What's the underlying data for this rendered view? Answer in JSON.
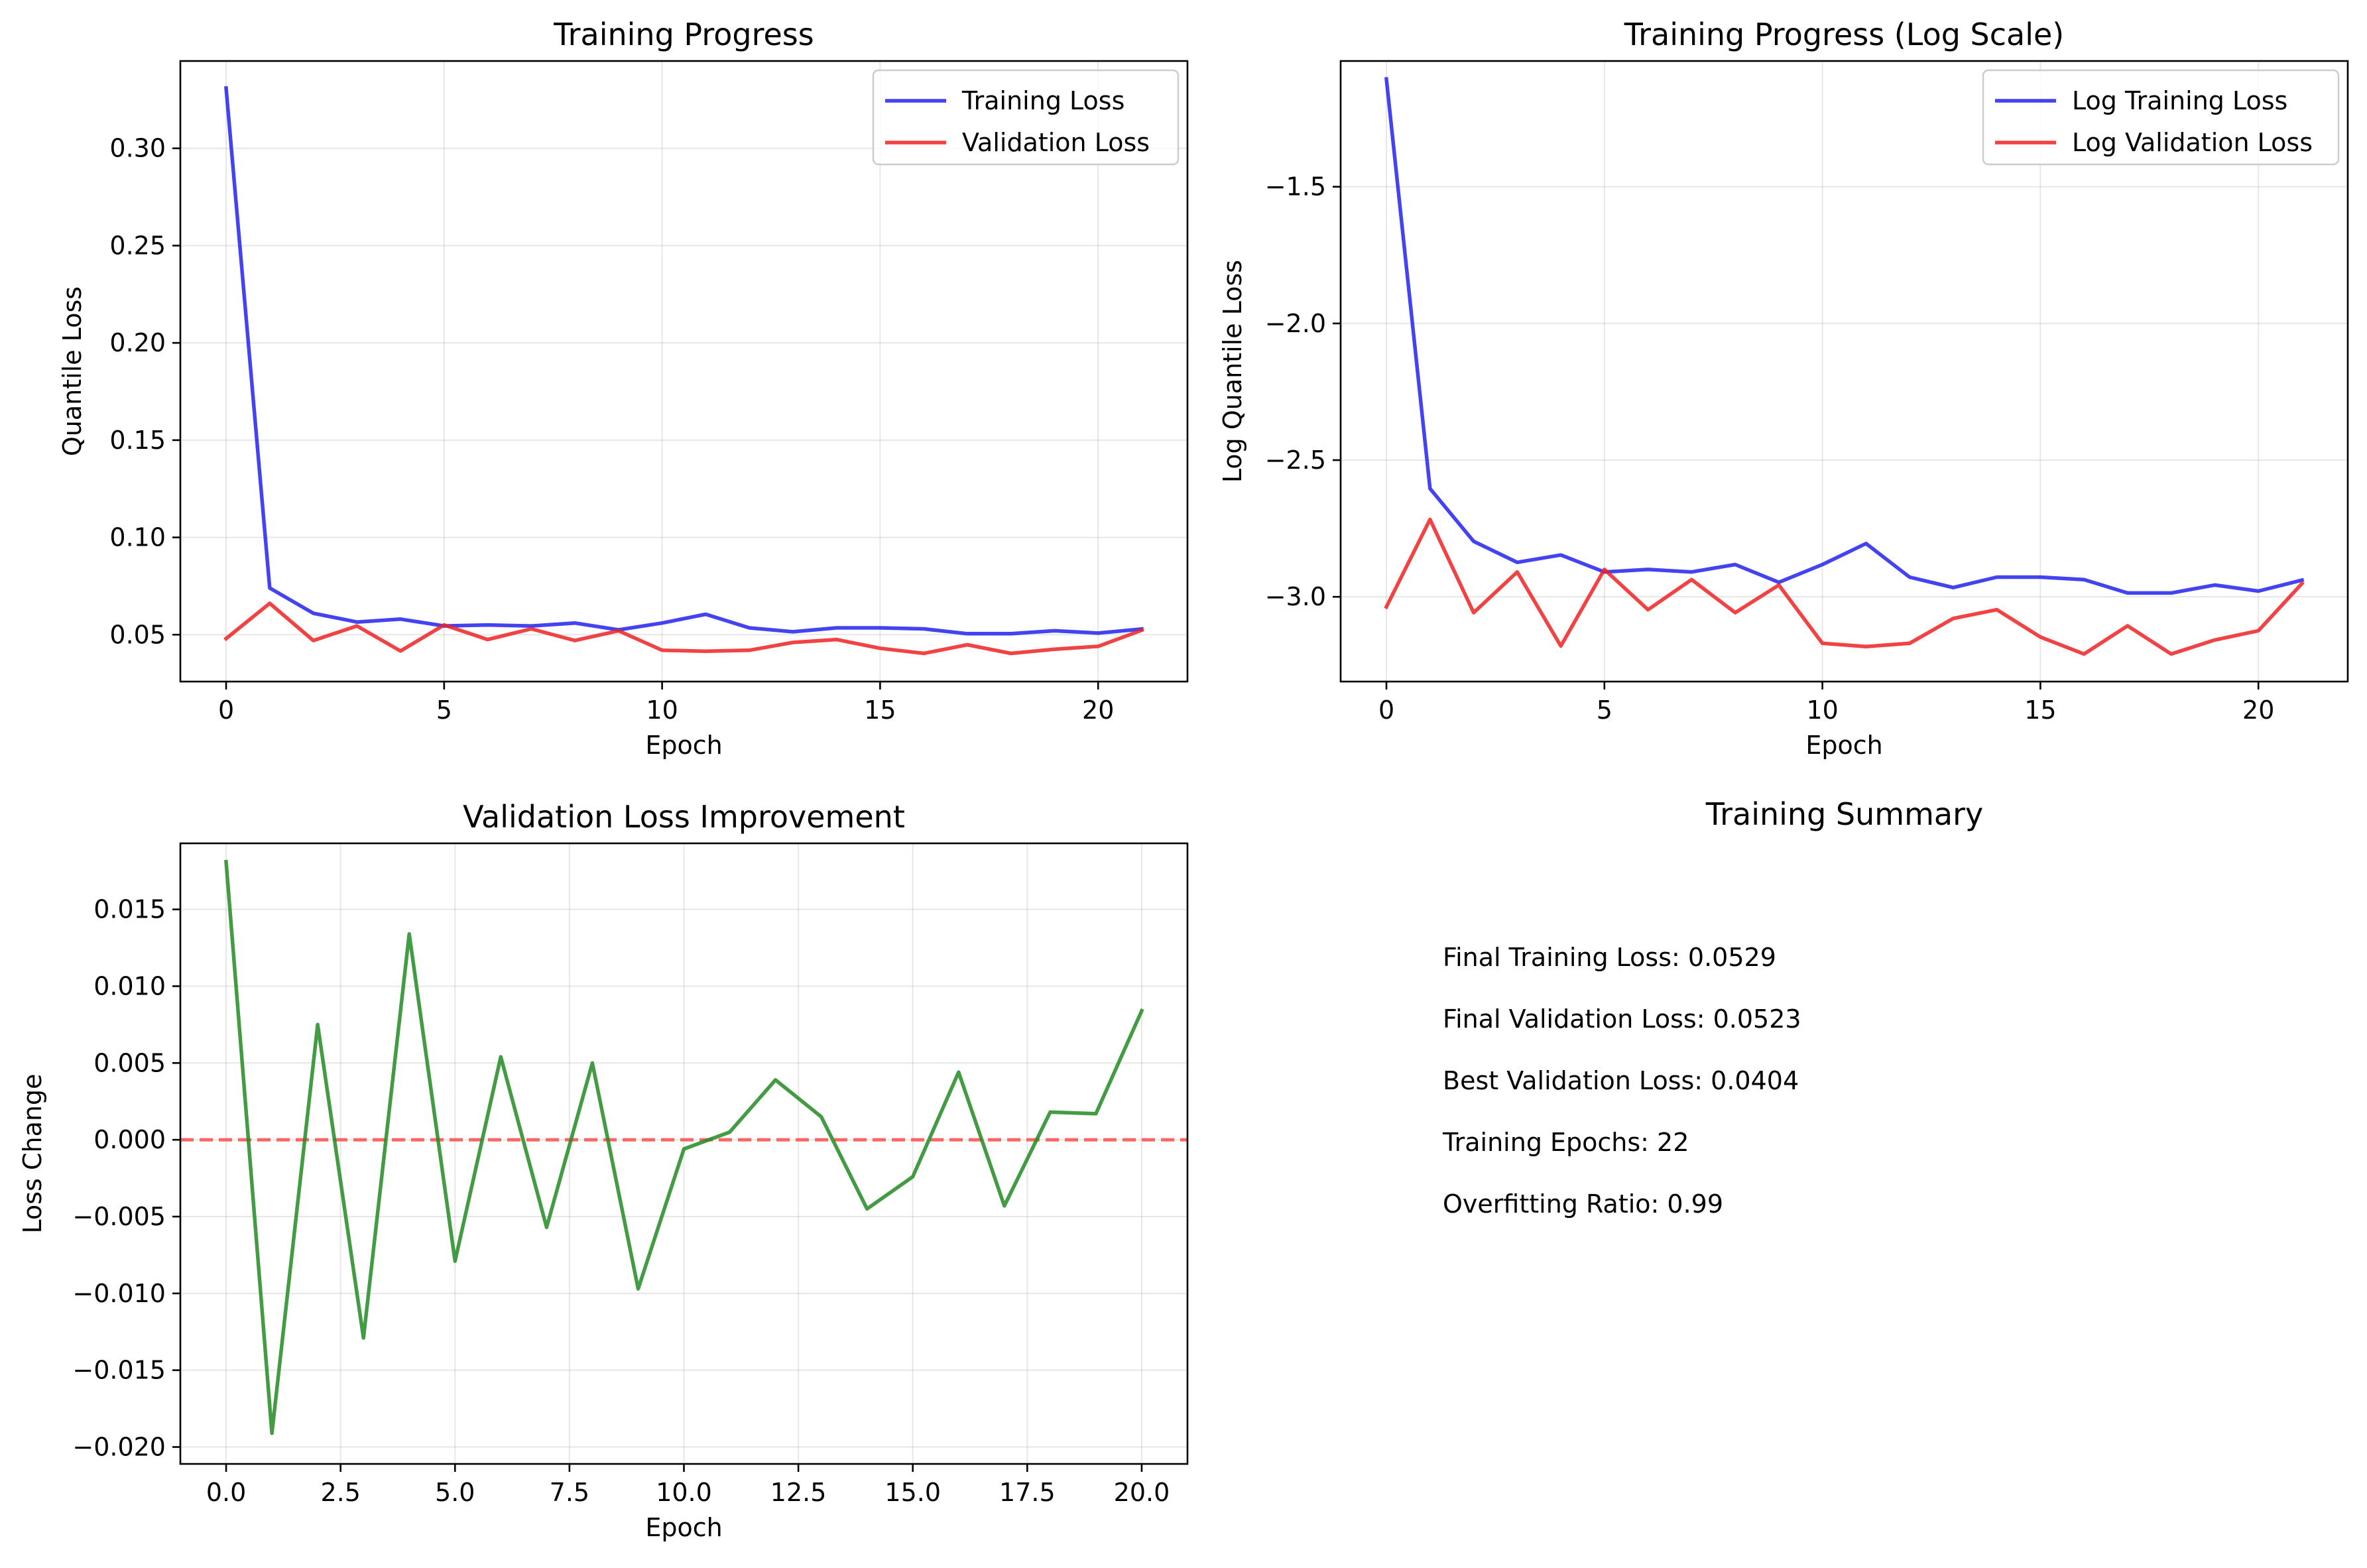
{
  "colors": {
    "training": "#2222ee",
    "validation": "#ee2222",
    "improvement": "#228B22",
    "zero_line": "#ff5555"
  },
  "chart_data": [
    {
      "type": "line",
      "title": "Training Progress",
      "xlabel": "Epoch",
      "ylabel": "Quantile Loss",
      "xlim": [
        -1.05,
        22.05
      ],
      "ylim": [
        0.0259,
        0.3449
      ],
      "xticks": [
        0,
        5,
        10,
        15,
        20
      ],
      "xtick_labels": [
        "0",
        "5",
        "10",
        "15",
        "20"
      ],
      "yticks": [
        0.05,
        0.1,
        0.15,
        0.2,
        0.25,
        0.3
      ],
      "ytick_labels": [
        "0.05",
        "0.10",
        "0.15",
        "0.20",
        "0.25",
        "0.30"
      ],
      "grid": true,
      "legend_position": "top-right",
      "x": [
        0,
        1,
        2,
        3,
        4,
        5,
        6,
        7,
        8,
        9,
        10,
        11,
        12,
        13,
        14,
        15,
        16,
        17,
        18,
        19,
        20,
        21
      ],
      "series": [
        {
          "name": "Training Loss",
          "color_key": "training",
          "values": [
            0.331,
            0.074,
            0.061,
            0.0565,
            0.058,
            0.0545,
            0.055,
            0.0545,
            0.056,
            0.0525,
            0.056,
            0.0605,
            0.0535,
            0.0515,
            0.0535,
            0.0535,
            0.053,
            0.0505,
            0.0505,
            0.052,
            0.0508,
            0.0529
          ]
        },
        {
          "name": "Validation Loss",
          "color_key": "validation",
          "values": [
            0.048,
            0.0661,
            0.047,
            0.0545,
            0.0416,
            0.055,
            0.0475,
            0.053,
            0.047,
            0.052,
            0.042,
            0.0415,
            0.042,
            0.046,
            0.0475,
            0.043,
            0.0404,
            0.0448,
            0.0404,
            0.0425,
            0.044,
            0.0523
          ]
        }
      ]
    },
    {
      "type": "line",
      "title": "Training Progress (Log Scale)",
      "xlabel": "Epoch",
      "ylabel": "Log Quantile Loss",
      "xlim": [
        -1.05,
        22.05
      ],
      "ylim": [
        -3.31,
        -1.04
      ],
      "xticks": [
        0,
        5,
        10,
        15,
        20
      ],
      "xtick_labels": [
        "0",
        "5",
        "10",
        "15",
        "20"
      ],
      "yticks": [
        -3.0,
        -2.5,
        -2.0,
        -1.5
      ],
      "ytick_labels": [
        "−3.0",
        "−2.5",
        "−2.0",
        "−1.5"
      ],
      "grid": true,
      "legend_position": "top-right",
      "x": [
        0,
        1,
        2,
        3,
        4,
        5,
        6,
        7,
        8,
        9,
        10,
        11,
        12,
        13,
        14,
        15,
        16,
        17,
        18,
        19,
        20,
        21
      ],
      "series": [
        {
          "name": "Log Training Loss",
          "color_key": "training",
          "values": [
            -1.106,
            -2.604,
            -2.797,
            -2.874,
            -2.847,
            -2.909,
            -2.9,
            -2.909,
            -2.882,
            -2.947,
            -2.882,
            -2.805,
            -2.928,
            -2.966,
            -2.928,
            -2.928,
            -2.937,
            -2.986,
            -2.986,
            -2.957,
            -2.979,
            -2.939
          ]
        },
        {
          "name": "Log Validation Loss",
          "color_key": "validation",
          "values": [
            -3.037,
            -2.717,
            -3.058,
            -2.909,
            -3.18,
            -2.9,
            -3.047,
            -2.937,
            -3.058,
            -2.957,
            -3.17,
            -3.182,
            -3.17,
            -3.079,
            -3.047,
            -3.147,
            -3.209,
            -3.106,
            -3.209,
            -3.158,
            -3.124,
            -2.951
          ]
        }
      ]
    },
    {
      "type": "line",
      "title": "Validation Loss Improvement",
      "xlabel": "Epoch",
      "ylabel": "Loss Change",
      "xlim": [
        -1.0,
        21.0
      ],
      "ylim": [
        -0.0211,
        0.0193
      ],
      "xticks": [
        0,
        2.5,
        5,
        7.5,
        10,
        12.5,
        15,
        17.5,
        20
      ],
      "xtick_labels": [
        "0.0",
        "2.5",
        "5.0",
        "7.5",
        "10.0",
        "12.5",
        "15.0",
        "17.5",
        "20.0"
      ],
      "yticks": [
        -0.02,
        -0.015,
        -0.01,
        -0.005,
        0.0,
        0.005,
        0.01,
        0.015
      ],
      "ytick_labels": [
        "−0.020",
        "−0.015",
        "−0.010",
        "−0.005",
        "0.000",
        "0.005",
        "0.010",
        "0.015"
      ],
      "grid": true,
      "reference_line": {
        "y": 0,
        "style": "dashed",
        "color_key": "zero_line"
      },
      "x": [
        0,
        1,
        2,
        3,
        4,
        5,
        6,
        7,
        8,
        9,
        10,
        11,
        12,
        13,
        14,
        15,
        16,
        17,
        18,
        19,
        20
      ],
      "series": [
        {
          "color_key": "improvement",
          "values": [
            0.0181,
            -0.0191,
            0.0075,
            -0.0129,
            0.0134,
            -0.0079,
            0.0054,
            -0.0057,
            0.005,
            -0.0097,
            -0.0006,
            0.0005,
            0.0039,
            0.0015,
            -0.0045,
            -0.0024,
            0.0044,
            -0.0043,
            0.0018,
            0.0017,
            0.0084
          ]
        }
      ]
    }
  ],
  "summary": {
    "title": "Training Summary",
    "lines": [
      "Final Training Loss: 0.0529",
      "Final Validation Loss: 0.0523",
      "Best Validation Loss: 0.0404",
      "Training Epochs: 22",
      "Overfitting Ratio: 0.99"
    ]
  }
}
